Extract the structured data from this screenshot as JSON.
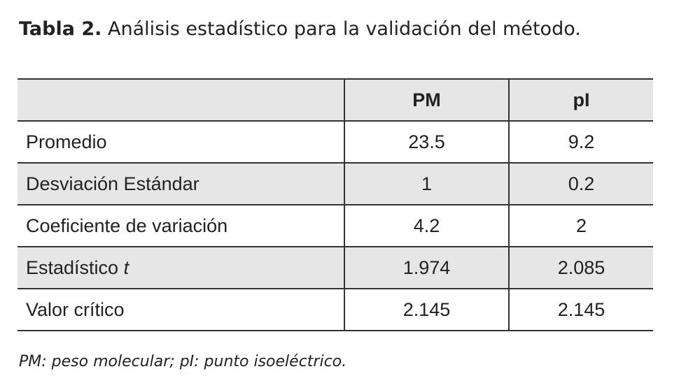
{
  "title": {
    "label": "Tabla 2.",
    "text": "Análisis estadístico para la validación del método."
  },
  "table": {
    "columns": [
      "PM",
      "pI"
    ],
    "rows": [
      {
        "label": "Promedio",
        "values": [
          "23.5",
          "9.2"
        ]
      },
      {
        "label": "Desviación Estándar",
        "values": [
          "1",
          "0.2"
        ]
      },
      {
        "label": "Coeficiente de variación",
        "values": [
          "4.2",
          "2"
        ]
      },
      {
        "label": "Estadístico",
        "label_italic": "t",
        "values": [
          "1.974",
          "2.085"
        ]
      },
      {
        "label": "Valor crítico",
        "values": [
          "2.145",
          "2.145"
        ]
      }
    ]
  },
  "footnote": "PM: peso molecular; pI: punto isoeléctrico."
}
